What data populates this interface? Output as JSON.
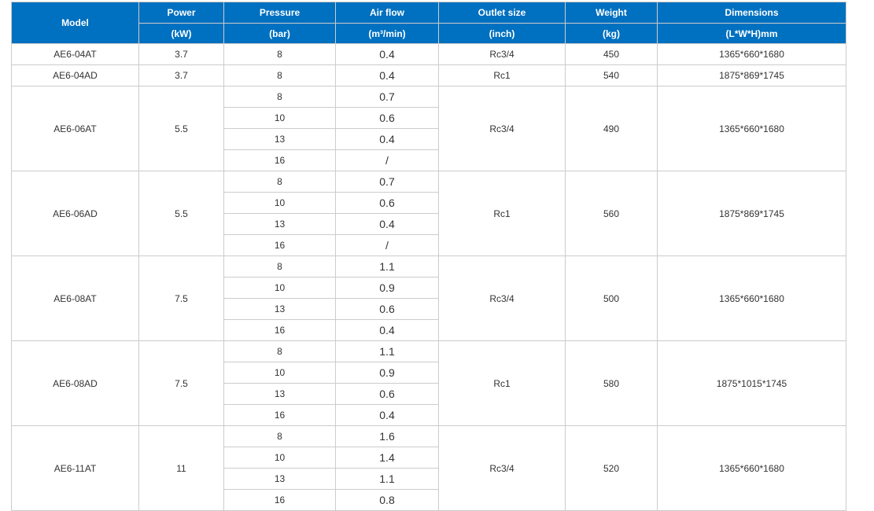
{
  "colors": {
    "header_bg": "#0070c0",
    "header_text": "#ffffff",
    "border": "#cccccc"
  },
  "headers": [
    {
      "label": "Model",
      "unit": null
    },
    {
      "label": "Power",
      "unit": "(kW)"
    },
    {
      "label": "Pressure",
      "unit": "(bar)"
    },
    {
      "label": "Air flow",
      "unit": "(m³/min)"
    },
    {
      "label": "Outlet size",
      "unit": "(inch)"
    },
    {
      "label": "Weight",
      "unit": "(kg)"
    },
    {
      "label": "Dimensions",
      "unit": "(L*W*H)mm"
    }
  ],
  "rows": [
    {
      "model": "AE6-04AT",
      "power": "3.7",
      "outlet": "Rc3/4",
      "weight": "450",
      "dimensions": "1365*660*1680",
      "flows": [
        {
          "pressure": "8",
          "air_flow": "0.4"
        }
      ]
    },
    {
      "model": "AE6-04AD",
      "power": "3.7",
      "outlet": "Rc1",
      "weight": "540",
      "dimensions": "1875*869*1745",
      "flows": [
        {
          "pressure": "8",
          "air_flow": "0.4"
        }
      ]
    },
    {
      "model": "AE6-06AT",
      "power": "5.5",
      "outlet": "Rc3/4",
      "weight": "490",
      "dimensions": "1365*660*1680",
      "flows": [
        {
          "pressure": "8",
          "air_flow": "0.7"
        },
        {
          "pressure": "10",
          "air_flow": "0.6"
        },
        {
          "pressure": "13",
          "air_flow": "0.4"
        },
        {
          "pressure": "16",
          "air_flow": "/"
        }
      ]
    },
    {
      "model": "AE6-06AD",
      "power": "5.5",
      "outlet": "Rc1",
      "weight": "560",
      "dimensions": "1875*869*1745",
      "flows": [
        {
          "pressure": "8",
          "air_flow": "0.7"
        },
        {
          "pressure": "10",
          "air_flow": "0.6"
        },
        {
          "pressure": "13",
          "air_flow": "0.4"
        },
        {
          "pressure": "16",
          "air_flow": "/"
        }
      ]
    },
    {
      "model": "AE6-08AT",
      "power": "7.5",
      "outlet": "Rc3/4",
      "weight": "500",
      "dimensions": "1365*660*1680",
      "flows": [
        {
          "pressure": "8",
          "air_flow": "1.1"
        },
        {
          "pressure": "10",
          "air_flow": "0.9"
        },
        {
          "pressure": "13",
          "air_flow": "0.6"
        },
        {
          "pressure": "16",
          "air_flow": "0.4"
        }
      ]
    },
    {
      "model": "AE6-08AD",
      "power": "7.5",
      "outlet": "Rc1",
      "weight": "580",
      "dimensions": "1875*1015*1745",
      "flows": [
        {
          "pressure": "8",
          "air_flow": "1.1"
        },
        {
          "pressure": "10",
          "air_flow": "0.9"
        },
        {
          "pressure": "13",
          "air_flow": "0.6"
        },
        {
          "pressure": "16",
          "air_flow": "0.4"
        }
      ]
    },
    {
      "model": "AE6-11AT",
      "power": "11",
      "outlet": "Rc3/4",
      "weight": "520",
      "dimensions": "1365*660*1680",
      "flows": [
        {
          "pressure": "8",
          "air_flow": "1.6"
        },
        {
          "pressure": "10",
          "air_flow": "1.4"
        },
        {
          "pressure": "13",
          "air_flow": "1.1"
        },
        {
          "pressure": "16",
          "air_flow": "0.8"
        }
      ]
    }
  ]
}
